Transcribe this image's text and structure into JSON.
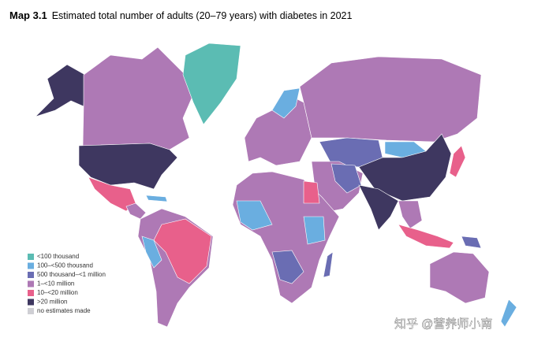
{
  "title": {
    "label": "Map 3.1",
    "text": "Estimated total number of adults (20–79 years) with diabetes in 2021"
  },
  "legend": [
    {
      "label": "<100 thousand",
      "color": "#5bbcb3"
    },
    {
      "label": "100–<500 thousand",
      "color": "#6aaee0"
    },
    {
      "label": "500 thousand–<1 million",
      "color": "#6a6db3"
    },
    {
      "label": "1–<10 million",
      "color": "#ae79b5"
    },
    {
      "label": "10–<20 million",
      "color": "#e8608b"
    },
    {
      "label": ">20 million",
      "color": "#3e3760"
    },
    {
      "label": "no estimates made",
      "color": "#cfcfd4"
    }
  ],
  "watermark": "知乎 @营养师小南"
}
